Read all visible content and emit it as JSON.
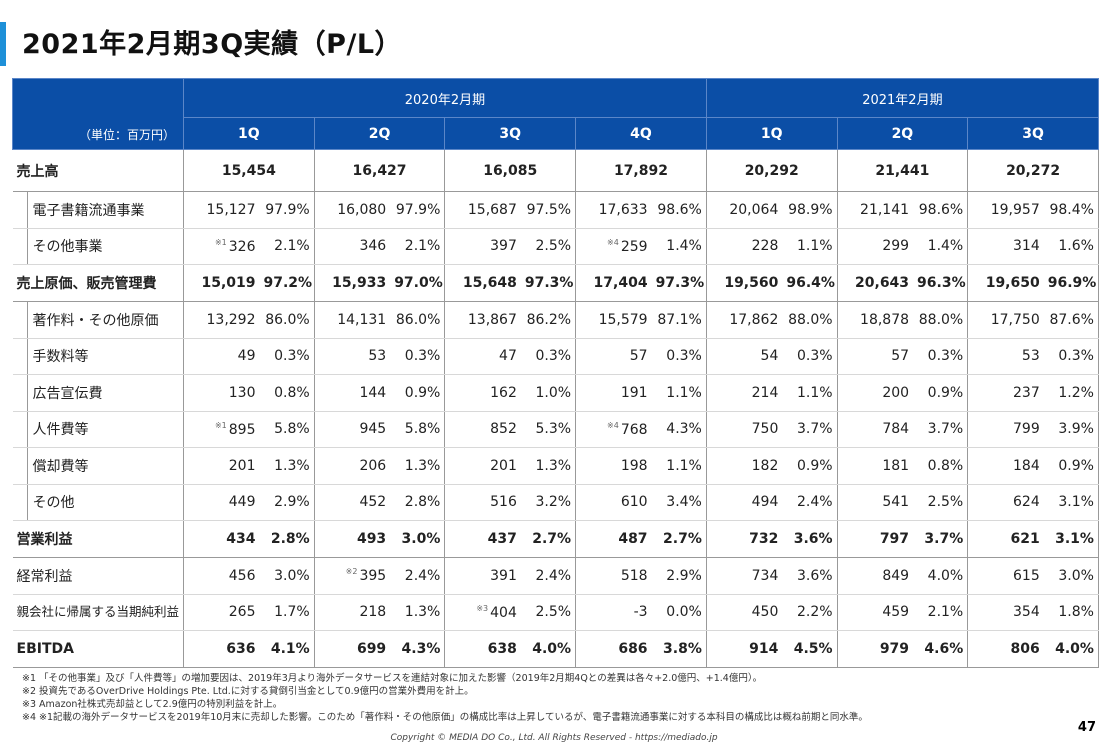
{
  "title": "2021年2月期3Q実績（P/L）",
  "unit_label": "（単位：百万円）",
  "periods": [
    {
      "label": "2020年2月期",
      "span": 4
    },
    {
      "label": "2021年2月期",
      "span": 3
    }
  ],
  "quarters": [
    "1Q",
    "2Q",
    "3Q",
    "4Q",
    "1Q",
    "2Q",
    "3Q"
  ],
  "rows": [
    {
      "label": "売上高",
      "type": "total",
      "values": [
        "15,454",
        "16,427",
        "16,085",
        "17,892",
        "20,292",
        "21,441",
        "20,272"
      ]
    },
    {
      "label": "電子書籍流通事業",
      "type": "sub",
      "values": [
        [
          "15,127",
          "97.9%"
        ],
        [
          "16,080",
          "97.9%"
        ],
        [
          "15,687",
          "97.5%"
        ],
        [
          "17,633",
          "98.6%"
        ],
        [
          "20,064",
          "98.9%"
        ],
        [
          "21,141",
          "98.6%"
        ],
        [
          "19,957",
          "98.4%"
        ]
      ]
    },
    {
      "label": "その他事業",
      "type": "sub",
      "values": [
        [
          "326",
          "2.1%",
          "※1"
        ],
        [
          "346",
          "2.1%"
        ],
        [
          "397",
          "2.5%"
        ],
        [
          "259",
          "1.4%",
          "※4"
        ],
        [
          "228",
          "1.1%"
        ],
        [
          "299",
          "1.4%"
        ],
        [
          "314",
          "1.6%"
        ]
      ]
    },
    {
      "label": "売上原価、販売管理費",
      "type": "major",
      "values": [
        [
          "15,019",
          "97.2%"
        ],
        [
          "15,933",
          "97.0%"
        ],
        [
          "15,648",
          "97.3%"
        ],
        [
          "17,404",
          "97.3%"
        ],
        [
          "19,560",
          "96.4%"
        ],
        [
          "20,643",
          "96.3%"
        ],
        [
          "19,650",
          "96.9%"
        ]
      ]
    },
    {
      "label": "著作料・その他原価",
      "type": "sub",
      "values": [
        [
          "13,292",
          "86.0%"
        ],
        [
          "14,131",
          "86.0%"
        ],
        [
          "13,867",
          "86.2%"
        ],
        [
          "15,579",
          "87.1%"
        ],
        [
          "17,862",
          "88.0%"
        ],
        [
          "18,878",
          "88.0%"
        ],
        [
          "17,750",
          "87.6%"
        ]
      ]
    },
    {
      "label": "手数料等",
      "type": "sub",
      "values": [
        [
          "49",
          "0.3%"
        ],
        [
          "53",
          "0.3%"
        ],
        [
          "47",
          "0.3%"
        ],
        [
          "57",
          "0.3%"
        ],
        [
          "54",
          "0.3%"
        ],
        [
          "57",
          "0.3%"
        ],
        [
          "53",
          "0.3%"
        ]
      ]
    },
    {
      "label": "広告宣伝費",
      "type": "sub",
      "values": [
        [
          "130",
          "0.8%"
        ],
        [
          "144",
          "0.9%"
        ],
        [
          "162",
          "1.0%"
        ],
        [
          "191",
          "1.1%"
        ],
        [
          "214",
          "1.1%"
        ],
        [
          "200",
          "0.9%"
        ],
        [
          "237",
          "1.2%"
        ]
      ]
    },
    {
      "label": "人件費等",
      "type": "sub",
      "values": [
        [
          "895",
          "5.8%",
          "※1"
        ],
        [
          "945",
          "5.8%"
        ],
        [
          "852",
          "5.3%"
        ],
        [
          "768",
          "4.3%",
          "※4"
        ],
        [
          "750",
          "3.7%"
        ],
        [
          "784",
          "3.7%"
        ],
        [
          "799",
          "3.9%"
        ]
      ]
    },
    {
      "label": "償却費等",
      "type": "sub",
      "values": [
        [
          "201",
          "1.3%"
        ],
        [
          "206",
          "1.3%"
        ],
        [
          "201",
          "1.3%"
        ],
        [
          "198",
          "1.1%"
        ],
        [
          "182",
          "0.9%"
        ],
        [
          "181",
          "0.8%"
        ],
        [
          "184",
          "0.9%"
        ]
      ]
    },
    {
      "label": "その他",
      "type": "sub",
      "values": [
        [
          "449",
          "2.9%"
        ],
        [
          "452",
          "2.8%"
        ],
        [
          "516",
          "3.2%"
        ],
        [
          "610",
          "3.4%"
        ],
        [
          "494",
          "2.4%"
        ],
        [
          "541",
          "2.5%"
        ],
        [
          "624",
          "3.1%"
        ]
      ]
    },
    {
      "label": "営業利益",
      "type": "major",
      "values": [
        [
          "434",
          "2.8%"
        ],
        [
          "493",
          "3.0%"
        ],
        [
          "437",
          "2.7%"
        ],
        [
          "487",
          "2.7%"
        ],
        [
          "732",
          "3.6%"
        ],
        [
          "797",
          "3.7%"
        ],
        [
          "621",
          "3.1%"
        ]
      ]
    },
    {
      "label": "経常利益",
      "type": "plain",
      "values": [
        [
          "456",
          "3.0%"
        ],
        [
          "395",
          "2.4%",
          "※2"
        ],
        [
          "391",
          "2.4%"
        ],
        [
          "518",
          "2.9%"
        ],
        [
          "734",
          "3.6%"
        ],
        [
          "849",
          "4.0%"
        ],
        [
          "615",
          "3.0%"
        ]
      ]
    },
    {
      "label": "親会社に帰属する当期純利益",
      "type": "plain",
      "values": [
        [
          "265",
          "1.7%"
        ],
        [
          "218",
          "1.3%"
        ],
        [
          "404",
          "2.5%",
          "※3"
        ],
        [
          "-3",
          "0.0%"
        ],
        [
          "450",
          "2.2%"
        ],
        [
          "459",
          "2.1%"
        ],
        [
          "354",
          "1.8%"
        ]
      ]
    },
    {
      "label": "EBITDA",
      "type": "major",
      "values": [
        [
          "636",
          "4.1%"
        ],
        [
          "699",
          "4.3%"
        ],
        [
          "638",
          "4.0%"
        ],
        [
          "686",
          "3.8%"
        ],
        [
          "914",
          "4.5%"
        ],
        [
          "979",
          "4.6%"
        ],
        [
          "806",
          "4.0%"
        ]
      ]
    }
  ],
  "footnotes": [
    "※1 「その他事業」及び「人件費等」の増加要因は、2019年3月より海外データサービスを連結対象に加えた影響（2019年2月期4Qとの差異は各々+2.0億円、+1.4億円）。",
    "※2 投資先であるOverDrive Holdings Pte. Ltd.に対する貸倒引当金として0.9億円の営業外費用を計上。",
    "※3 Amazon社株式売却益として2.9億円の特別利益を計上。",
    "※4 ※1記載の海外データサービスを2019年10月末に売却した影響。このため「著作料・その他原価」の構成比率は上昇しているが、電子書籍流通事業に対する本科目の構成比は概ね前期と同水準。"
  ],
  "copyright": "Copyright © MEDIA DO Co., Ltd. All Rights Reserved - https://mediado.jp",
  "page_number": "47",
  "colors": {
    "header": "#0b4ea6",
    "accent": "#1e90d8"
  }
}
